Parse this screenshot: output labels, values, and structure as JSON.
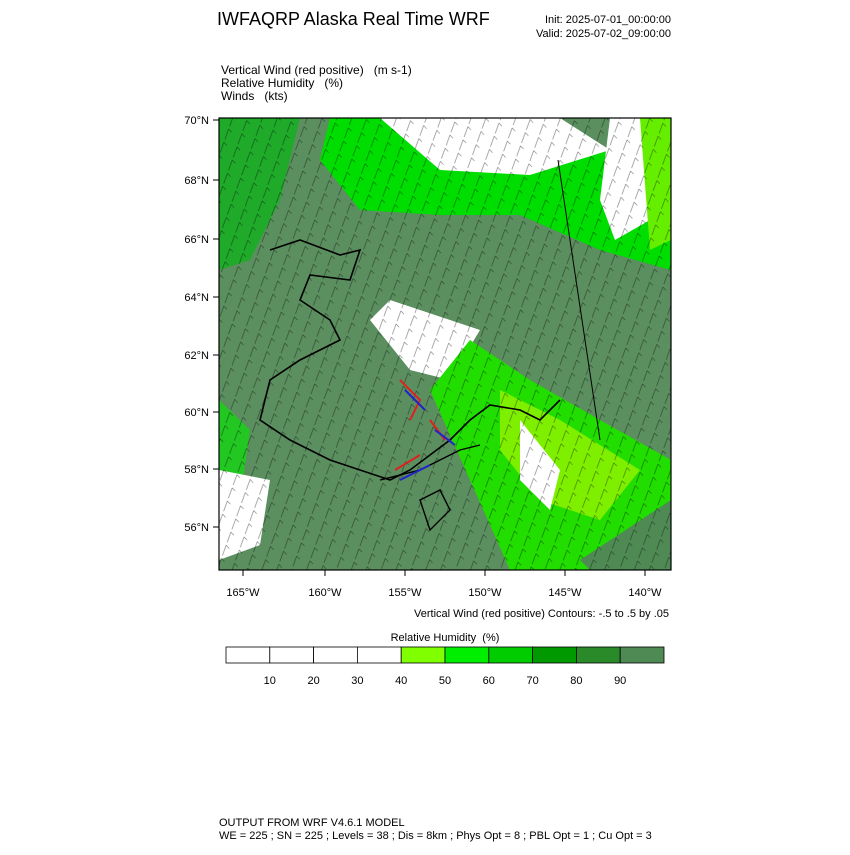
{
  "header": {
    "title": "IWFAQRP Alaska Real Time WRF",
    "init": "Init: 2025-07-01_00:00:00",
    "valid": "Valid: 2025-07-02_09:00:00"
  },
  "fields": [
    "Vertical Wind (red positive)   (m s-1)",
    "Relative Humidity   (%)",
    "Winds   (kts)"
  ],
  "map": {
    "lat_labels": [
      "70°N",
      "68°N",
      "66°N",
      "64°N",
      "62°N",
      "60°N",
      "58°N",
      "56°N"
    ],
    "lon_labels": [
      "165°W",
      "160°W",
      "155°W",
      "150°W",
      "145°W",
      "140°W"
    ]
  },
  "contour_note": "Vertical Wind (red positive) Contours: -.5 to .5 by .05",
  "colorbar": {
    "title": "Relative Humidity  (%)",
    "colors": [
      "#ffffff",
      "#ffffff",
      "#ffffff",
      "#ffffff",
      "#80ff00",
      "#00ee00",
      "#00cc00",
      "#009a00",
      "#2a8a2a",
      "#4f8a55"
    ],
    "labels": [
      "10",
      "20",
      "30",
      "40",
      "50",
      "60",
      "70",
      "80",
      "90"
    ]
  },
  "footer": [
    "OUTPUT FROM WRF V4.6.1 MODEL",
    "WE = 225 ; SN = 225 ; Levels = 38 ; Dis = 8km ; Phys Opt = 8 ; PBL Opt = 1 ; Cu Opt = 3"
  ]
}
